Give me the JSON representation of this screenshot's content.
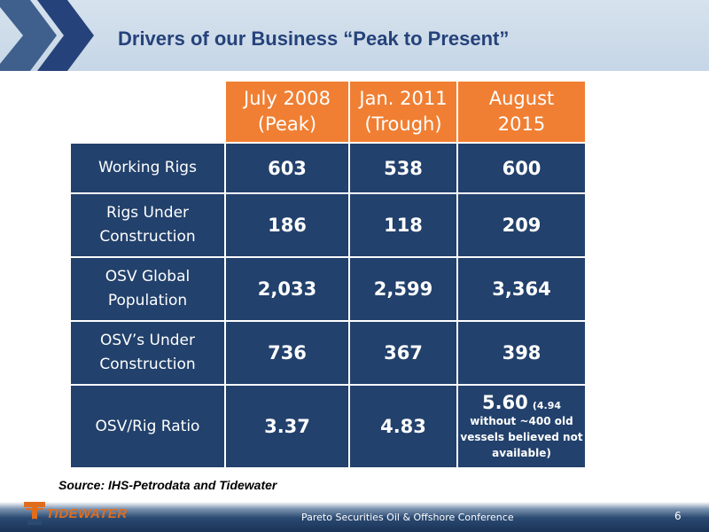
{
  "header": {
    "title": "Drivers of our Business “Peak to Present”"
  },
  "table": {
    "columns": [
      {
        "line1": "July 2008",
        "line2": "(Peak)"
      },
      {
        "line1": "Jan. 2011",
        "line2": "(Trough)"
      },
      {
        "line1": "August",
        "line2": "2015"
      }
    ],
    "rows": [
      {
        "label_line1": "Working Rigs",
        "label_line2": "",
        "values": [
          "603",
          "538",
          "600"
        ]
      },
      {
        "label_line1": "Rigs Under",
        "label_line2": "Construction",
        "values": [
          "186",
          "118",
          "209"
        ]
      },
      {
        "label_line1": "OSV Global",
        "label_line2": "Population",
        "values": [
          "2,033",
          "2,599",
          "3,364"
        ]
      },
      {
        "label_line1": "OSV’s Under",
        "label_line2": "Construction",
        "values": [
          "736",
          "367",
          "398"
        ]
      },
      {
        "label_line1": "OSV/Rig Ratio",
        "label_line2": "",
        "values": [
          "3.37",
          "4.83",
          "5.60"
        ]
      }
    ],
    "ratio_note": {
      "inline": "(4.94",
      "line2": "without ~400 old",
      "line3": "vessels believed not",
      "line4": "available)"
    }
  },
  "source": "Source: IHS-Petrodata and Tidewater",
  "footer": {
    "logo_text": "TIDEWATER",
    "conference": "Pareto Securities Oil & Offshore Conference",
    "page_number": "6"
  },
  "colors": {
    "header_band": "#c6d6e6",
    "title": "#25427a",
    "column_header": "#f07f33",
    "cell": "#22416c",
    "logo": "#e06d1e"
  },
  "icons": [
    "chevron-right-icon",
    "tidewater-logo-icon"
  ]
}
